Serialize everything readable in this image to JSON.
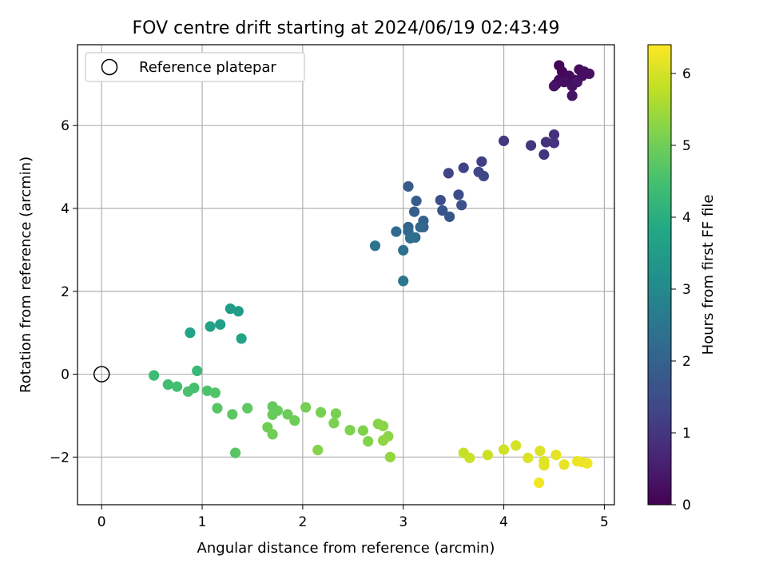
{
  "chart_data": {
    "type": "scatter",
    "title": "FOV centre drift starting at 2024/06/19 02:43:49",
    "xlabel": "Angular distance from reference (arcmin)",
    "ylabel": "Rotation from reference (arcmin)",
    "xlim": [
      -0.24,
      5.1
    ],
    "ylim": [
      -3.15,
      7.95
    ],
    "xticks": [
      0,
      1,
      2,
      3,
      4,
      5
    ],
    "yticks": [
      -2,
      0,
      2,
      4,
      6
    ],
    "grid": true,
    "legend": {
      "placement": "top-left",
      "entries": [
        "Reference platepar"
      ]
    },
    "reference_point": {
      "x": 0,
      "y": 0
    },
    "colorbar": {
      "label": "Hours from first FF file",
      "range": [
        0,
        6.4
      ],
      "ticks": [
        0,
        1,
        2,
        3,
        4,
        5,
        6
      ],
      "colormap": "viridis"
    },
    "points": [
      {
        "x": 4.55,
        "y": 7.45,
        "c": 0.05
      },
      {
        "x": 4.58,
        "y": 7.3,
        "c": 0.08
      },
      {
        "x": 4.62,
        "y": 7.15,
        "c": 0.1
      },
      {
        "x": 4.52,
        "y": 7.0,
        "c": 0.12
      },
      {
        "x": 4.55,
        "y": 7.1,
        "c": 0.14
      },
      {
        "x": 4.65,
        "y": 7.2,
        "c": 0.16
      },
      {
        "x": 4.7,
        "y": 7.1,
        "c": 0.18
      },
      {
        "x": 4.75,
        "y": 7.35,
        "c": 0.2
      },
      {
        "x": 4.78,
        "y": 7.2,
        "c": 0.22
      },
      {
        "x": 4.8,
        "y": 7.3,
        "c": 0.24
      },
      {
        "x": 4.85,
        "y": 7.25,
        "c": 0.26
      },
      {
        "x": 4.6,
        "y": 7.05,
        "c": 0.28
      },
      {
        "x": 4.68,
        "y": 6.95,
        "c": 0.3
      },
      {
        "x": 4.5,
        "y": 6.95,
        "c": 0.32
      },
      {
        "x": 4.68,
        "y": 6.72,
        "c": 0.34
      },
      {
        "x": 4.73,
        "y": 7.05,
        "c": 0.36
      },
      {
        "x": 4.5,
        "y": 5.78,
        "c": 0.85
      },
      {
        "x": 4.42,
        "y": 5.6,
        "c": 0.9
      },
      {
        "x": 4.5,
        "y": 5.58,
        "c": 0.95
      },
      {
        "x": 4.4,
        "y": 5.3,
        "c": 0.98
      },
      {
        "x": 4.27,
        "y": 5.52,
        "c": 1.0
      },
      {
        "x": 4.0,
        "y": 5.63,
        "c": 1.05
      },
      {
        "x": 3.78,
        "y": 5.13,
        "c": 1.2
      },
      {
        "x": 3.6,
        "y": 4.98,
        "c": 1.25
      },
      {
        "x": 3.45,
        "y": 4.85,
        "c": 1.3
      },
      {
        "x": 3.75,
        "y": 4.88,
        "c": 1.35
      },
      {
        "x": 3.8,
        "y": 4.78,
        "c": 1.4
      },
      {
        "x": 3.55,
        "y": 4.33,
        "c": 1.5
      },
      {
        "x": 3.37,
        "y": 4.2,
        "c": 1.55
      },
      {
        "x": 3.58,
        "y": 4.08,
        "c": 1.6
      },
      {
        "x": 3.39,
        "y": 3.95,
        "c": 1.65
      },
      {
        "x": 3.46,
        "y": 3.8,
        "c": 1.7
      },
      {
        "x": 3.05,
        "y": 4.53,
        "c": 1.8
      },
      {
        "x": 3.13,
        "y": 4.18,
        "c": 1.85
      },
      {
        "x": 3.11,
        "y": 3.92,
        "c": 1.9
      },
      {
        "x": 3.2,
        "y": 3.7,
        "c": 1.95
      },
      {
        "x": 3.2,
        "y": 3.55,
        "c": 2.0
      },
      {
        "x": 3.05,
        "y": 3.55,
        "c": 2.05
      },
      {
        "x": 3.17,
        "y": 3.55,
        "c": 2.1
      },
      {
        "x": 3.05,
        "y": 3.45,
        "c": 2.15
      },
      {
        "x": 2.93,
        "y": 3.44,
        "c": 2.2
      },
      {
        "x": 3.12,
        "y": 3.3,
        "c": 2.25
      },
      {
        "x": 3.07,
        "y": 3.28,
        "c": 2.3
      },
      {
        "x": 3.0,
        "y": 2.99,
        "c": 2.35
      },
      {
        "x": 2.72,
        "y": 3.1,
        "c": 2.45
      },
      {
        "x": 3.0,
        "y": 2.25,
        "c": 2.5
      },
      {
        "x": 1.28,
        "y": 1.58,
        "c": 3.5
      },
      {
        "x": 1.36,
        "y": 1.52,
        "c": 3.55
      },
      {
        "x": 1.18,
        "y": 1.2,
        "c": 3.6
      },
      {
        "x": 1.08,
        "y": 1.15,
        "c": 3.65
      },
      {
        "x": 0.88,
        "y": 1.0,
        "c": 3.7
      },
      {
        "x": 1.39,
        "y": 0.86,
        "c": 3.75
      },
      {
        "x": 0.95,
        "y": 0.08,
        "c": 4.3
      },
      {
        "x": 0.52,
        "y": -0.03,
        "c": 4.35
      },
      {
        "x": 0.66,
        "y": -0.25,
        "c": 4.4
      },
      {
        "x": 0.75,
        "y": -0.3,
        "c": 4.45
      },
      {
        "x": 0.92,
        "y": -0.33,
        "c": 4.5
      },
      {
        "x": 0.86,
        "y": -0.42,
        "c": 4.55
      },
      {
        "x": 1.05,
        "y": -0.4,
        "c": 4.6
      },
      {
        "x": 1.13,
        "y": -0.45,
        "c": 4.65
      },
      {
        "x": 1.15,
        "y": -0.82,
        "c": 4.7
      },
      {
        "x": 1.3,
        "y": -0.97,
        "c": 4.75
      },
      {
        "x": 1.45,
        "y": -0.82,
        "c": 4.8
      },
      {
        "x": 1.33,
        "y": -1.9,
        "c": 4.7
      },
      {
        "x": 1.7,
        "y": -0.78,
        "c": 4.85
      },
      {
        "x": 1.75,
        "y": -0.88,
        "c": 4.9
      },
      {
        "x": 1.7,
        "y": -0.98,
        "c": 4.92
      },
      {
        "x": 1.85,
        "y": -0.97,
        "c": 4.95
      },
      {
        "x": 1.92,
        "y": -1.12,
        "c": 4.97
      },
      {
        "x": 1.65,
        "y": -1.28,
        "c": 5.0
      },
      {
        "x": 1.7,
        "y": -1.45,
        "c": 5.02
      },
      {
        "x": 2.03,
        "y": -0.8,
        "c": 5.05
      },
      {
        "x": 2.18,
        "y": -0.92,
        "c": 5.08
      },
      {
        "x": 2.33,
        "y": -0.95,
        "c": 5.1
      },
      {
        "x": 2.31,
        "y": -1.18,
        "c": 5.12
      },
      {
        "x": 2.47,
        "y": -1.35,
        "c": 5.15
      },
      {
        "x": 2.6,
        "y": -1.36,
        "c": 5.18
      },
      {
        "x": 2.65,
        "y": -1.62,
        "c": 5.2
      },
      {
        "x": 2.15,
        "y": -1.83,
        "c": 5.22
      },
      {
        "x": 2.75,
        "y": -1.2,
        "c": 5.25
      },
      {
        "x": 2.8,
        "y": -1.25,
        "c": 5.27
      },
      {
        "x": 2.85,
        "y": -1.5,
        "c": 5.3
      },
      {
        "x": 2.8,
        "y": -1.6,
        "c": 5.32
      },
      {
        "x": 2.87,
        "y": -2.0,
        "c": 5.35
      },
      {
        "x": 3.6,
        "y": -1.9,
        "c": 5.85
      },
      {
        "x": 3.66,
        "y": -2.02,
        "c": 5.88
      },
      {
        "x": 3.84,
        "y": -1.95,
        "c": 5.9
      },
      {
        "x": 4.0,
        "y": -1.82,
        "c": 5.95
      },
      {
        "x": 4.12,
        "y": -1.72,
        "c": 6.0
      },
      {
        "x": 4.24,
        "y": -2.02,
        "c": 6.05
      },
      {
        "x": 4.36,
        "y": -1.85,
        "c": 6.08
      },
      {
        "x": 4.4,
        "y": -2.1,
        "c": 6.1
      },
      {
        "x": 4.4,
        "y": -2.2,
        "c": 6.12
      },
      {
        "x": 4.52,
        "y": -1.95,
        "c": 6.15
      },
      {
        "x": 4.6,
        "y": -2.18,
        "c": 6.18
      },
      {
        "x": 4.73,
        "y": -2.1,
        "c": 6.2
      },
      {
        "x": 4.78,
        "y": -2.12,
        "c": 6.22
      },
      {
        "x": 4.83,
        "y": -2.15,
        "c": 6.25
      },
      {
        "x": 4.35,
        "y": -2.62,
        "c": 6.3
      }
    ]
  }
}
